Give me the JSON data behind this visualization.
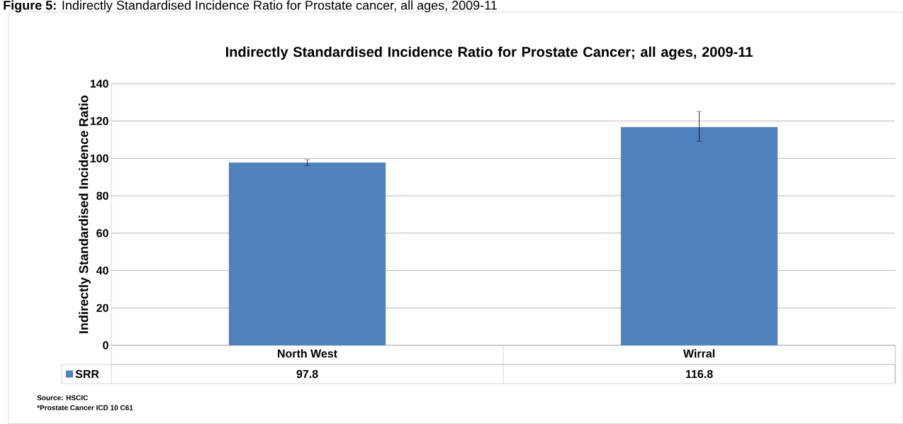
{
  "chart_data": {
    "type": "bar",
    "title": "Indirectly Standardised Incidence Ratio for Prostate Cancer; all ages, 2009-11",
    "ylabel": "Indirectly Standardised Incidence Ratio",
    "categories": [
      "North West",
      "Wirral"
    ],
    "series": [
      {
        "name": "SRR",
        "color": "#4f81bd",
        "values": [
          97.8,
          116.8
        ],
        "errors": [
          [
            96.2,
            99.3
          ],
          [
            109.1,
            125.1
          ]
        ]
      }
    ],
    "ylim": [
      0,
      140
    ],
    "yticks": [
      0,
      20,
      40,
      60,
      80,
      100,
      120,
      140
    ],
    "grid": "y",
    "legend": "bottom",
    "data_labels": true,
    "annotations": [
      "**Figure 5:** Indirectly Standardised Incidence Ratio for Prostate cancer, all ages, 2009-11",
      "Source: HSCIC",
      "*Prostate Cancer ICD 10 C61"
    ]
  }
}
